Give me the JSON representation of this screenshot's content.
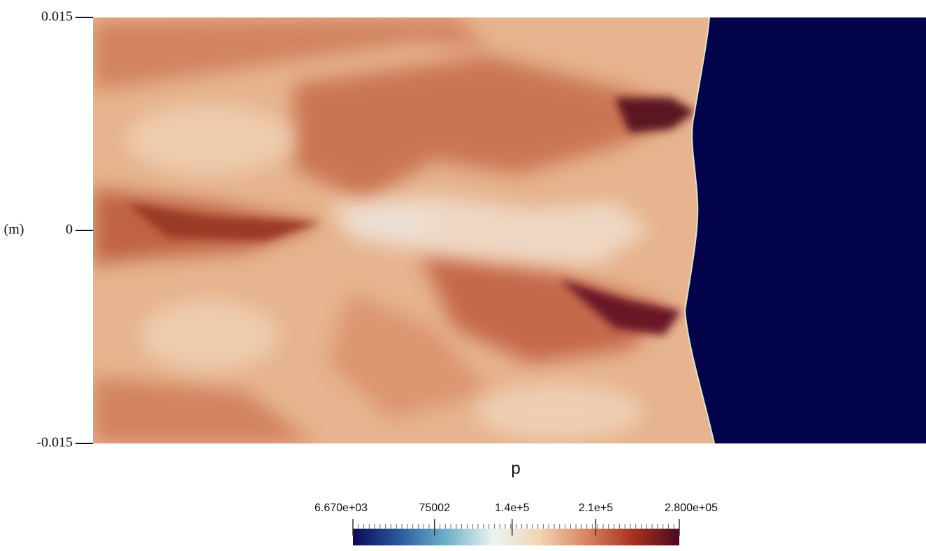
{
  "chart_data": {
    "type": "heatmap",
    "ylabel": "(m)",
    "ylim": [
      -0.015,
      0.015
    ],
    "yticks": [
      0.015,
      0,
      -0.015
    ],
    "colorbar": {
      "title": "p",
      "clim": [
        6670,
        280000
      ],
      "ticks": [
        {
          "value": 6670,
          "label": "6.670e+03"
        },
        75002,
        {
          "value": 140000,
          "label": "1.4e+5"
        },
        {
          "value": 210000,
          "label": "2.1e+5"
        },
        {
          "value": 280000,
          "label": "2.800e+05"
        }
      ],
      "colors": [
        "#0a0a5a",
        "#2a5a9a",
        "#6fb0c8",
        "#eaf4f2",
        "#f3d4b4",
        "#d98560",
        "#a8321e",
        "#4a0a20"
      ]
    }
  }
}
